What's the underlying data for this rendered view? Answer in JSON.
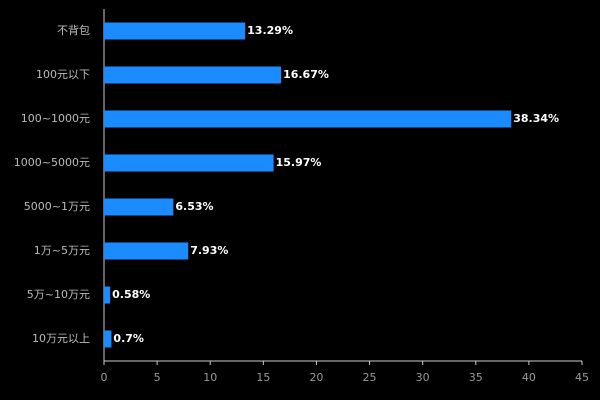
{
  "chart_data": {
    "type": "hbar",
    "categories": [
      "不背包",
      "100元以下",
      "100~1000元",
      "1000~5000元",
      "5000~1万元",
      "1万~5万元",
      "5万~10万元",
      "10万元以上"
    ],
    "values": [
      13.29,
      16.67,
      38.34,
      15.97,
      6.53,
      7.93,
      0.58,
      0.7
    ],
    "value_labels": [
      "13.29%",
      "16.67%",
      "38.34%",
      "15.97%",
      "6.53%",
      "7.93%",
      "0.58%",
      "0.7%"
    ],
    "color": "#1a8cff",
    "xlim": [
      0,
      45
    ],
    "xticks": [
      0,
      5,
      10,
      15,
      20,
      25,
      30,
      35,
      40,
      45
    ]
  }
}
